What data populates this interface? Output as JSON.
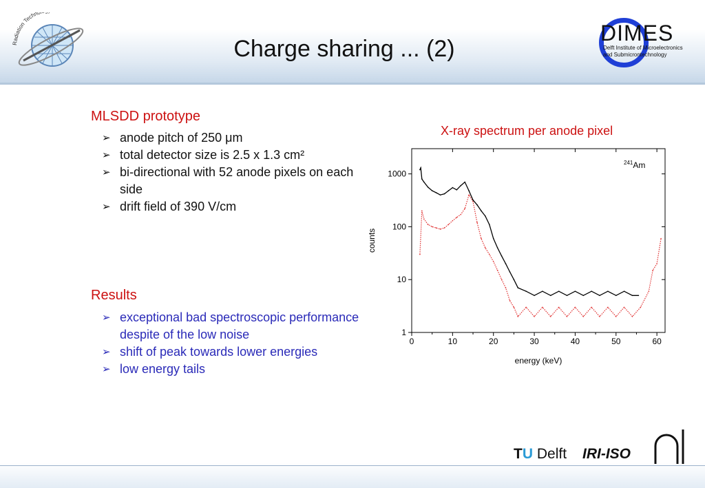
{
  "slide": {
    "title": "Charge sharing ... (2)"
  },
  "logos": {
    "dimes_word": "DIMES",
    "dimes_sub_line1": "Delft Institute of Microelectronics",
    "dimes_sub_line2": "and Submicrontechnology",
    "left_badge_text": "Radiation Technology",
    "tu_letters": "TU",
    "tu_t": "T",
    "tu_u": "U",
    "tu_delft": "Delft",
    "iri_iso": "IRI-ISO"
  },
  "left_column": {
    "section1_title": "MLSDD prototype",
    "section1_items": [
      "anode pitch of 250 μm",
      "total detector size is 2.5 x 1.3 cm²",
      "bi-directional with 52 anode pixels on each side",
      "drift field of 390 V/cm"
    ],
    "section2_title": "Results",
    "section2_items": [
      "exceptional bad spectroscopic performance despite of the low noise",
      "shift of peak towards lower energies",
      "low energy tails"
    ],
    "bullet_glyph": "➢"
  },
  "chart_caption": "X-ray spectrum per anode pixel",
  "chart_data": {
    "type": "line",
    "title": "",
    "xlabel": "energy (keV)",
    "ylabel": "counts",
    "xlim": [
      0,
      62
    ],
    "ylim": [
      1,
      3000
    ],
    "yscale": "log",
    "xticks": [
      0,
      10,
      20,
      30,
      40,
      50,
      60
    ],
    "yticks": [
      1,
      10,
      100,
      1000
    ],
    "annotation_sup": "241",
    "annotation_text": "Am",
    "annotation_position": "top-right",
    "grid": false,
    "series": [
      {
        "color": "#000000",
        "style": "solid",
        "x": [
          2.0,
          2.2,
          2.5,
          3,
          4,
          5,
          6,
          7,
          8,
          9,
          10,
          11,
          12,
          13,
          14,
          15,
          16,
          17,
          18,
          19,
          20,
          21,
          22,
          23,
          24,
          25,
          26,
          28,
          30,
          32,
          34,
          36,
          38,
          40,
          42,
          44,
          46,
          48,
          50,
          52,
          54,
          55.5
        ],
        "y": [
          1200,
          1300,
          800,
          700,
          560,
          480,
          440,
          400,
          420,
          480,
          550,
          500,
          600,
          700,
          480,
          320,
          260,
          200,
          160,
          110,
          60,
          40,
          28,
          20,
          14,
          10,
          7,
          6,
          5,
          6,
          5,
          6,
          5,
          6,
          5,
          6,
          5,
          6,
          5,
          6,
          5,
          5
        ]
      },
      {
        "color": "#e03030",
        "style": "dotted",
        "x": [
          2.0,
          2.5,
          3,
          4,
          5,
          6,
          7,
          8,
          9,
          10,
          11,
          12,
          13,
          14,
          15,
          16,
          17,
          18,
          19,
          20,
          21,
          22,
          23,
          24,
          25,
          26,
          28,
          30,
          32,
          34,
          36,
          38,
          40,
          42,
          44,
          46,
          48,
          50,
          52,
          54,
          56,
          58,
          59,
          60,
          61
        ],
        "y": [
          30,
          200,
          140,
          110,
          100,
          95,
          90,
          95,
          110,
          130,
          150,
          170,
          220,
          400,
          300,
          120,
          60,
          40,
          30,
          22,
          15,
          10,
          7,
          4,
          3,
          2,
          3,
          2,
          3,
          2,
          3,
          2,
          3,
          2,
          3,
          2,
          3,
          2,
          3,
          2,
          3,
          6,
          15,
          20,
          60
        ]
      }
    ]
  }
}
